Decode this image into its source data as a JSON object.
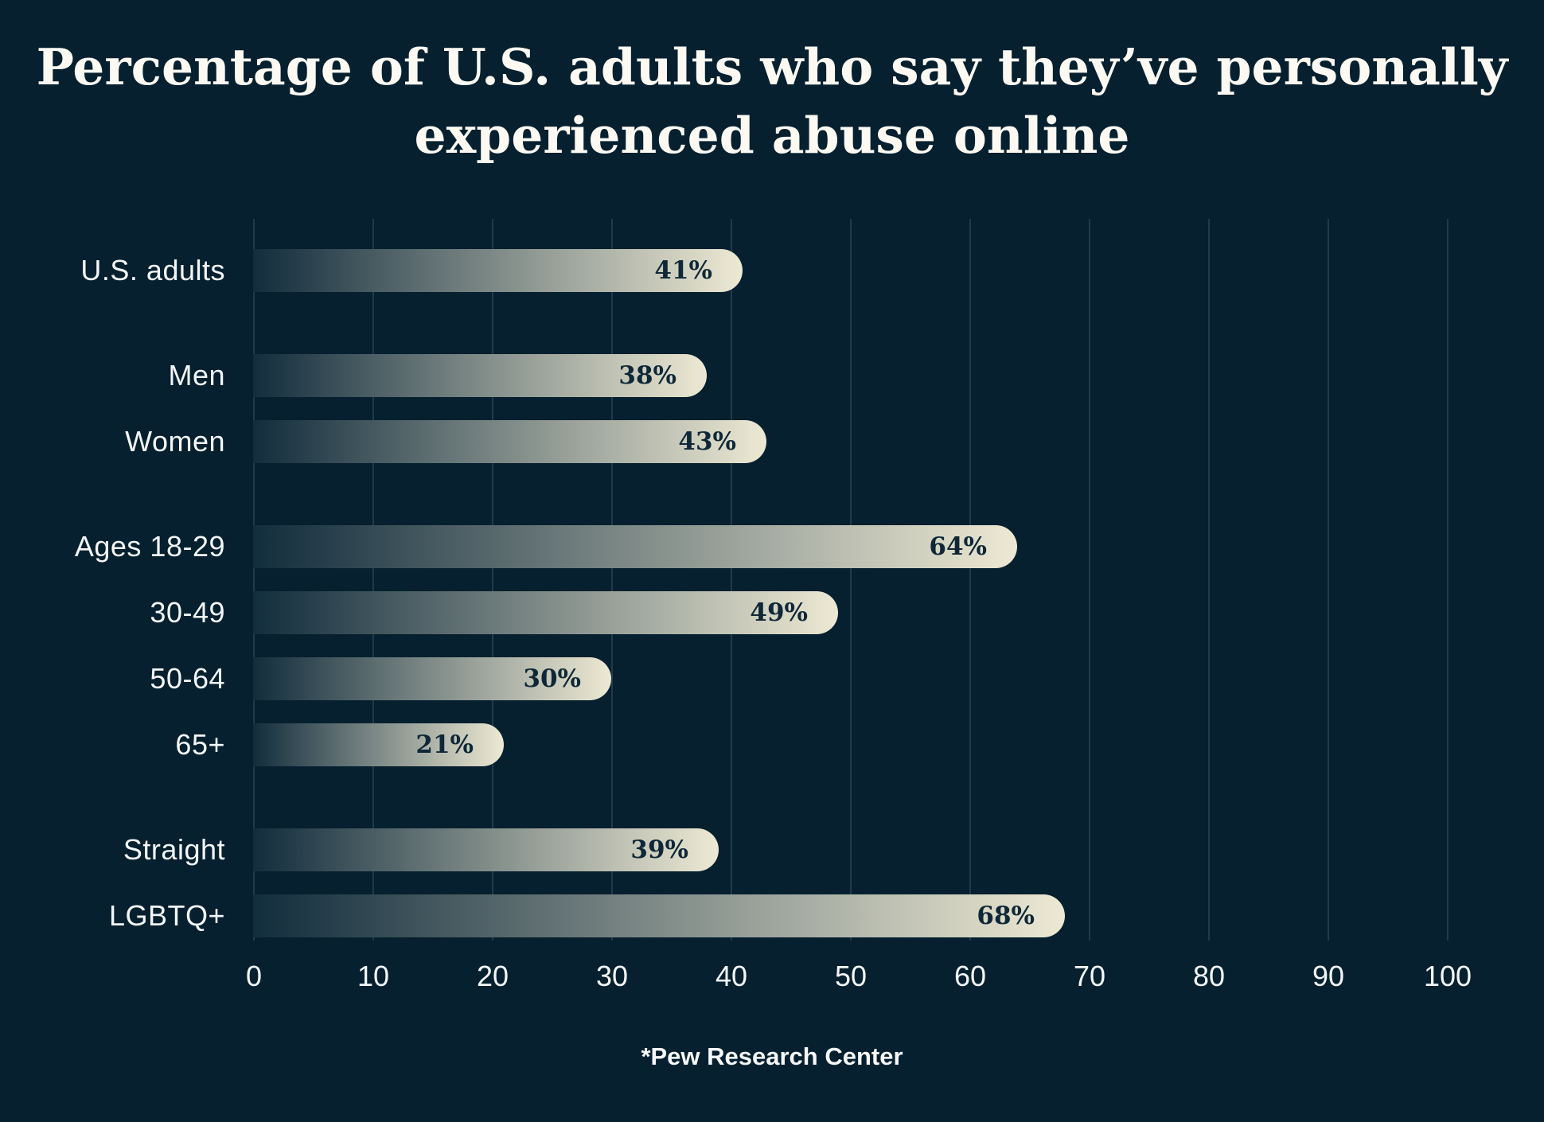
{
  "title": {
    "line1": "Percentage of U.S. adults who say they’ve personally",
    "line2": "experienced abuse online"
  },
  "source": "*Pew Research Center",
  "colors": {
    "background": "#06202f",
    "gridline": "#223a4b",
    "bar_gradient_start": "#122d3d",
    "bar_gradient_end": "#ede9d3",
    "value_label": "#0f2838",
    "text": "#f3f6f7",
    "title_text": "#fbf9f2"
  },
  "chart_data": {
    "type": "bar",
    "orientation": "horizontal",
    "title": "Percentage of U.S. adults who say they’ve personally experienced abuse online",
    "categories": [
      "U.S. adults",
      "Men",
      "Women",
      "Ages 18-29",
      "30-49",
      "50-64",
      "65+",
      "Straight",
      "LGBTQ+"
    ],
    "values": [
      41,
      38,
      43,
      64,
      49,
      30,
      21,
      39,
      68
    ],
    "value_labels": [
      "41%",
      "38%",
      "43%",
      "64%",
      "49%",
      "30%",
      "21%",
      "39%",
      "68%"
    ],
    "group_breaks": [
      1,
      3,
      7
    ],
    "x_ticks": [
      0,
      10,
      20,
      30,
      40,
      50,
      60,
      70,
      80,
      90,
      100
    ],
    "xlim": [
      0,
      100
    ],
    "grid": true,
    "legend": false,
    "source": "*Pew Research Center"
  }
}
